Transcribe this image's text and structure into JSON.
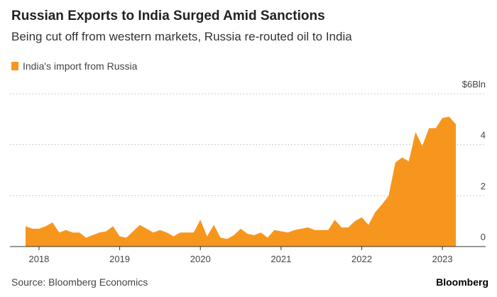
{
  "chart_data": {
    "type": "area",
    "title": "Russian Exports to India Surged Amid Sanctions",
    "subtitle": "Being cut off from western markets, Russia re-routed oil to India",
    "source": "Source: Bloomberg Economics",
    "brand": "Bloomberg",
    "categories": [
      null,
      null,
      "2018",
      null,
      null,
      null,
      null,
      null,
      null,
      null,
      null,
      null,
      null,
      null,
      "2019",
      null,
      null,
      null,
      null,
      null,
      null,
      null,
      null,
      null,
      null,
      null,
      "2020",
      null,
      null,
      null,
      null,
      null,
      null,
      null,
      null,
      null,
      null,
      null,
      "2021",
      null,
      null,
      null,
      null,
      null,
      null,
      null,
      null,
      null,
      null,
      null,
      "2022",
      null,
      null,
      null,
      null,
      null,
      null,
      null,
      null,
      null,
      null,
      null,
      "2023",
      null,
      null
    ],
    "series": [
      {
        "name": "India's import from Russia",
        "color": "#f7961d",
        "values": [
          0.8,
          0.7,
          0.7,
          0.8,
          0.95,
          0.55,
          0.65,
          0.55,
          0.55,
          0.35,
          0.45,
          0.55,
          0.6,
          0.8,
          0.4,
          0.35,
          0.6,
          0.85,
          0.7,
          0.55,
          0.65,
          0.55,
          0.4,
          0.55,
          0.55,
          0.55,
          1.05,
          0.4,
          0.85,
          0.35,
          0.3,
          0.45,
          0.7,
          0.5,
          0.45,
          0.55,
          0.35,
          0.65,
          0.6,
          0.55,
          0.65,
          0.7,
          0.75,
          0.65,
          0.65,
          0.65,
          1.05,
          0.75,
          0.75,
          1.0,
          1.15,
          0.85,
          1.35,
          1.65,
          2.0,
          3.3,
          3.5,
          3.35,
          4.5,
          3.95,
          4.65,
          4.65,
          5.05,
          5.1,
          4.8
        ]
      }
    ],
    "ylim": [
      0,
      6
    ],
    "yticks": [
      0,
      2,
      4,
      {
        "value": 6,
        "label": "$6Bln"
      }
    ],
    "grid": true
  }
}
